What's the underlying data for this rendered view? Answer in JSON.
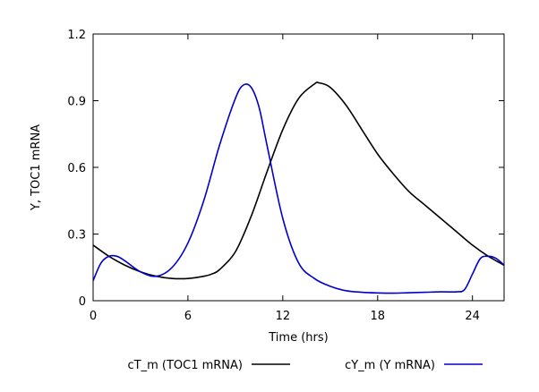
{
  "chart_data": {
    "type": "line",
    "title": "",
    "xlabel": "Time (hrs)",
    "ylabel": "Y, TOC1 mRNA",
    "xlim": [
      0,
      26
    ],
    "ylim": [
      0,
      1.2
    ],
    "xticks": [
      0,
      6,
      12,
      18,
      24
    ],
    "xtick_labels": [
      "0",
      "6",
      "12",
      "18",
      "24"
    ],
    "yticks": [
      0,
      0.3,
      0.6,
      0.9,
      1.2
    ],
    "ytick_labels": [
      "0",
      "0.3",
      "0.6",
      "0.9",
      "1.2"
    ],
    "grid": false,
    "legend_position": "bottom",
    "series": [
      {
        "name": "cT_m (TOC1 mRNA)",
        "color": "#000000",
        "x": [
          0,
          1,
          2,
          3,
          4,
          5,
          6,
          7,
          7.5,
          8,
          9,
          10,
          11,
          12,
          13,
          14,
          14.3,
          15,
          16,
          17,
          18,
          19,
          20,
          21,
          22,
          23,
          24,
          25,
          26
        ],
        "y": [
          0.25,
          0.2,
          0.16,
          0.13,
          0.11,
          0.1,
          0.1,
          0.11,
          0.12,
          0.14,
          0.22,
          0.38,
          0.58,
          0.77,
          0.91,
          0.975,
          0.98,
          0.96,
          0.88,
          0.77,
          0.66,
          0.57,
          0.49,
          0.43,
          0.37,
          0.31,
          0.25,
          0.2,
          0.16
        ]
      },
      {
        "name": "cY_m (Y mRNA)",
        "color": "#0000cc",
        "x": [
          0,
          0.5,
          1,
          1.5,
          2,
          3,
          4,
          5,
          6,
          7,
          8,
          9,
          9.5,
          10,
          10.5,
          11,
          12,
          13,
          14,
          15,
          16,
          17,
          18,
          19,
          20,
          21,
          22,
          23,
          23.5,
          24,
          24.5,
          25,
          25.5,
          26
        ],
        "y": [
          0.09,
          0.17,
          0.2,
          0.2,
          0.18,
          0.13,
          0.11,
          0.15,
          0.26,
          0.45,
          0.7,
          0.91,
          0.97,
          0.96,
          0.87,
          0.7,
          0.37,
          0.17,
          0.1,
          0.065,
          0.045,
          0.038,
          0.035,
          0.034,
          0.036,
          0.038,
          0.04,
          0.04,
          0.05,
          0.12,
          0.19,
          0.2,
          0.19,
          0.16
        ]
      }
    ]
  }
}
